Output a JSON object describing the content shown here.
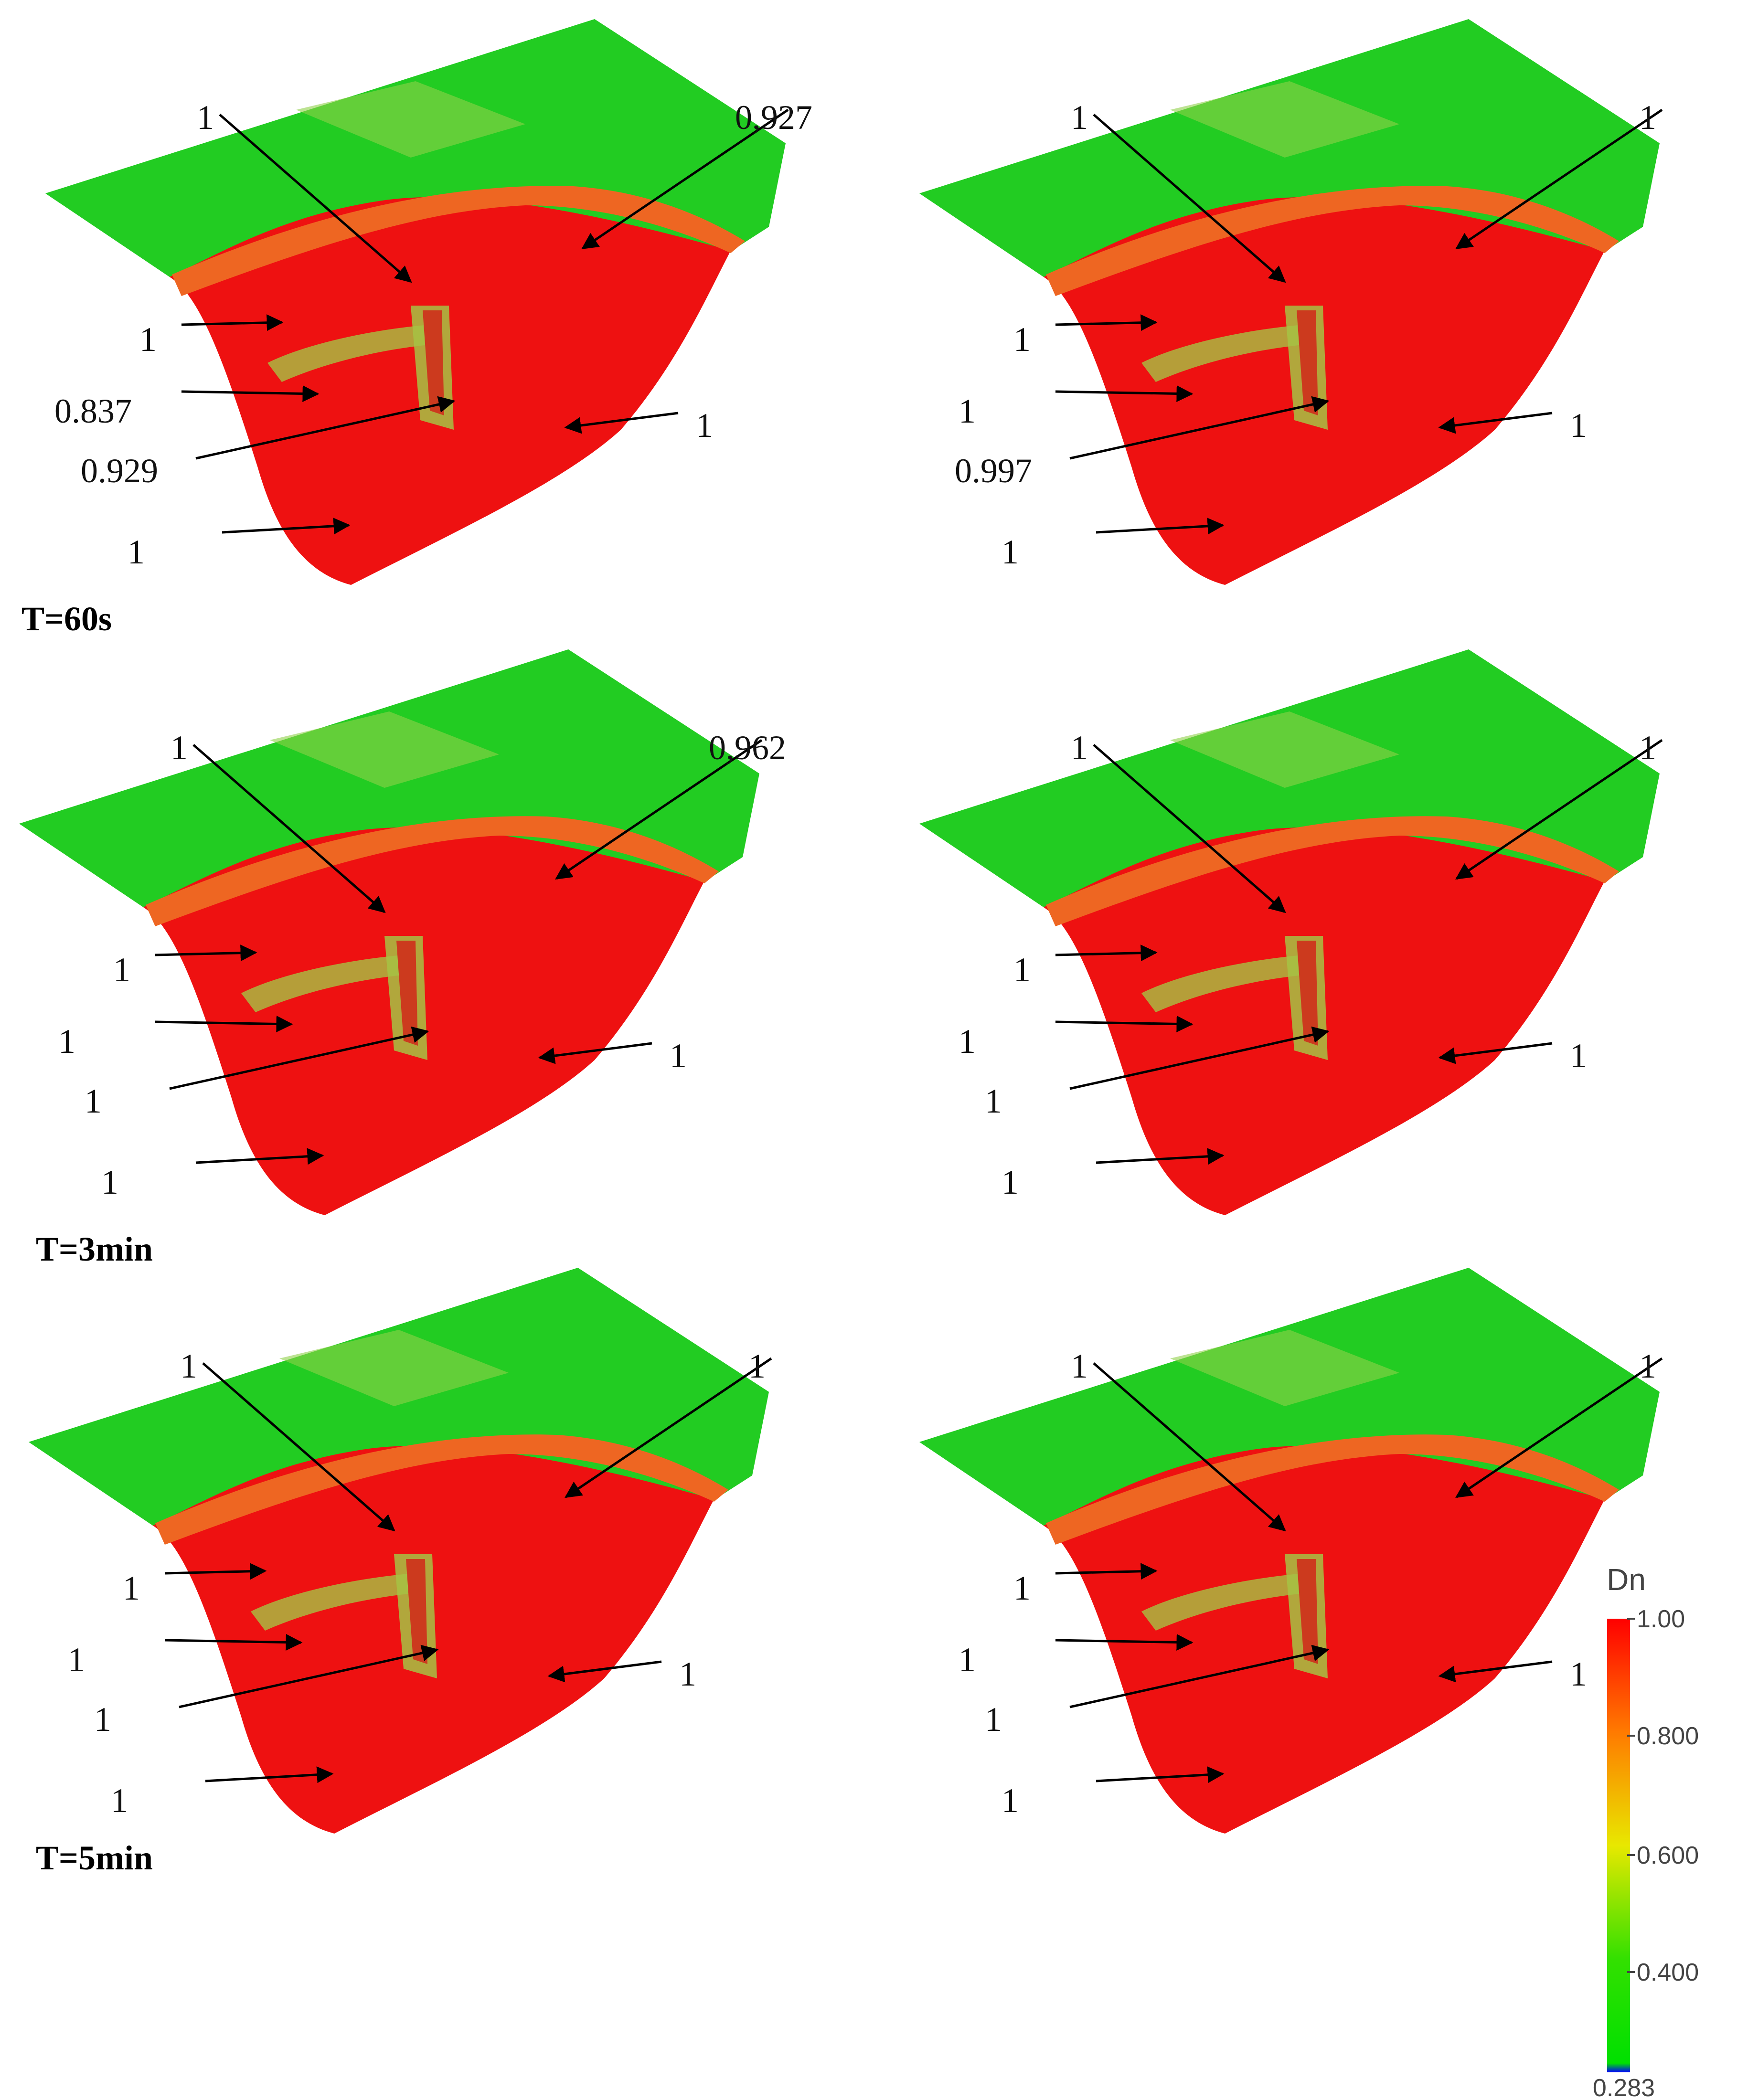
{
  "colorbar": {
    "title": "Dn",
    "ticks": [
      "1.00",
      "0.800",
      "0.600",
      "0.400"
    ],
    "min_label": "0.283",
    "colors": {
      "max": "#ff0000",
      "orange": "#ff7a00",
      "yellow": "#e8e800",
      "green": "#00e000",
      "min": "#0000ff"
    }
  },
  "surface_colors": {
    "flat": "#22cc22",
    "damaged": "#ee1111",
    "rim": "#ee6622",
    "transition": "#a6c244"
  },
  "rows": [
    {
      "time_label": "T=60s",
      "left": {
        "top_left": "1",
        "top_right": "0,927",
        "side_1": "1",
        "side_2": "0.837",
        "side_3": "0.929",
        "bottom": "1",
        "center": "1"
      },
      "right": {
        "top_left": "1",
        "top_right": "1",
        "side_1": "1",
        "side_2": "1",
        "side_3": "0.997",
        "bottom": "1",
        "center": "1"
      }
    },
    {
      "time_label": "T=3min",
      "left": {
        "top_left": "1",
        "top_right": "0,962",
        "side_1": "1",
        "side_2": "1",
        "side_3": "1",
        "bottom": "1",
        "center": "1"
      },
      "right": {
        "top_left": "1",
        "top_right": "1",
        "side_1": "1",
        "side_2": "1",
        "side_3": "1",
        "bottom": "1",
        "center": "1"
      }
    },
    {
      "time_label": "T=5min",
      "left": {
        "top_left": "1",
        "top_right": "1",
        "side_1": "1",
        "side_2": "1",
        "side_3": "1",
        "bottom": "1",
        "center": "1"
      },
      "right": {
        "top_left": "1",
        "top_right": "1",
        "side_1": "1",
        "side_2": "1",
        "side_3": "1",
        "bottom": "1",
        "center": "1"
      }
    }
  ]
}
